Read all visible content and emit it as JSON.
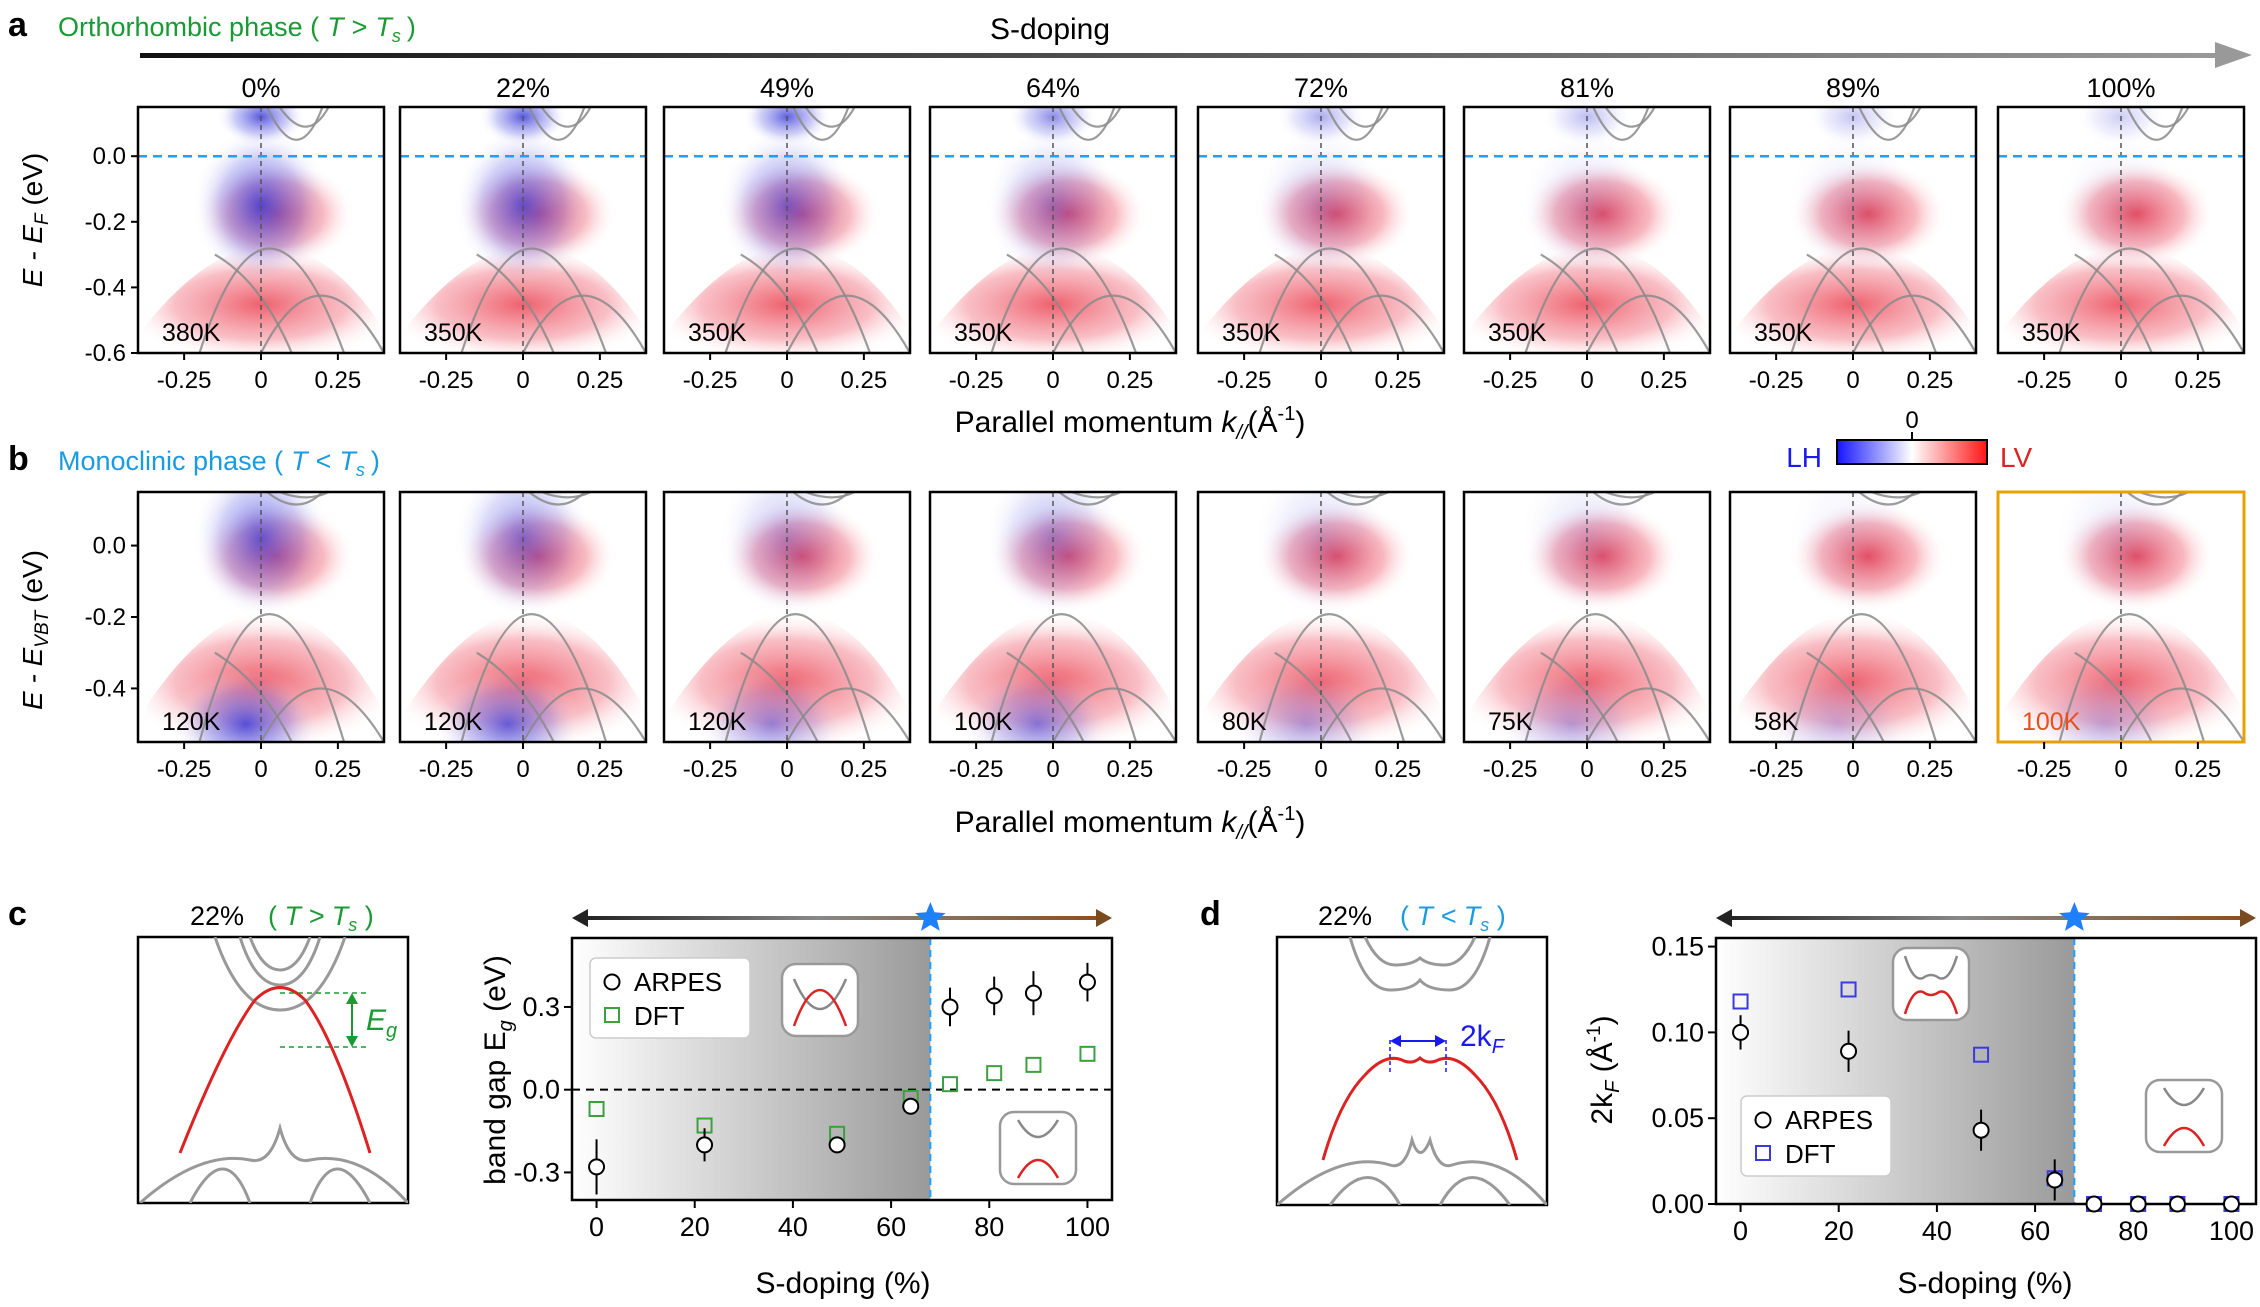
{
  "colors": {
    "green": "#1a9a33",
    "cyan": "#1a9be0",
    "red": "#dd2222",
    "blue": "#1a1aee",
    "orange": "#e8a000",
    "dashblue": "#1ea0ff",
    "star": "#1e7fff",
    "brown": "#7a4a20"
  },
  "panel_a": {
    "label": "a",
    "phase_prefix": "Orthorhombic phase (",
    "phase_T": "T",
    "phase_rel": ">",
    "phase_Ts": "T",
    "phase_sub": "s",
    "phase_suffix": ")",
    "arrow_label": "S-doping",
    "ylabel_main": "E - E",
    "ylabel_sub": "F",
    "ylabel_unit": " (eV)"
  },
  "panel_b": {
    "label": "b",
    "phase_prefix": "Monoclinic phase (",
    "phase_T": "T",
    "phase_rel": "<",
    "phase_Ts": "T",
    "phase_sub": "s",
    "phase_suffix": ")",
    "ylabel_main": "E - E",
    "ylabel_sub": "VBT",
    "ylabel_unit": " (eV)",
    "colorbar": {
      "left": "LH",
      "right": "LV",
      "zero": "0"
    }
  },
  "xaxis_label": {
    "main": "Parallel momentum ",
    "k": "k",
    "sub": "//",
    "unit_open": "(Å",
    "unit_exp": "-1",
    "unit_close": ")"
  },
  "chart_data": [
    {
      "id": "a",
      "type": "heatmap",
      "title": "ARPES spectra, orthorhombic phase (T > Ts)",
      "doping_labels": [
        "0%",
        "22%",
        "49%",
        "64%",
        "72%",
        "81%",
        "89%",
        "100%"
      ],
      "temperatures": [
        "380K",
        "350K",
        "350K",
        "350K",
        "350K",
        "350K",
        "350K",
        "350K"
      ],
      "blue_weight": [
        1.0,
        0.9,
        0.75,
        0.5,
        0.3,
        0.2,
        0.15,
        0.1
      ],
      "xticks": [
        "-0.25",
        "0",
        "0.25"
      ],
      "xlim": [
        -0.4,
        0.4
      ],
      "yticks": [
        "0.0",
        "-0.2",
        "-0.4",
        "-0.6"
      ],
      "ylim": [
        -0.6,
        0.15
      ],
      "fermi_line": 0.0
    },
    {
      "id": "b",
      "type": "heatmap",
      "title": "ARPES spectra, monoclinic phase (T < Ts)",
      "doping_labels": [
        "0%",
        "22%",
        "49%",
        "64%",
        "72%",
        "81%",
        "89%",
        "100%"
      ],
      "temperatures": [
        "120K",
        "120K",
        "120K",
        "100K",
        "80K",
        "75K",
        "58K",
        "100K"
      ],
      "blue_weight": [
        0.9,
        0.7,
        0.4,
        0.5,
        0.25,
        0.2,
        0.1,
        0.15
      ],
      "highlight_panel": 7,
      "xticks": [
        "-0.25",
        "0",
        "0.25"
      ],
      "xlim": [
        -0.4,
        0.4
      ],
      "yticks": [
        "0.0",
        "-0.2",
        "-0.4"
      ],
      "ylim": [
        -0.55,
        0.15
      ]
    },
    {
      "id": "c",
      "type": "scatter",
      "panel_label": "c",
      "inset_title_pct": "22%",
      "inset_title_rel": "T > T",
      "inset_title_sub": "s",
      "eg_label": "E",
      "eg_sub": "g",
      "xlabel": "S-doping (%)",
      "ylabel_main": "band gap E",
      "ylabel_sub": "g",
      "ylabel_unit": " (eV)",
      "xlim": [
        -5,
        105
      ],
      "ylim": [
        -0.4,
        0.55
      ],
      "xticks": [
        "0",
        "20",
        "40",
        "60",
        "80",
        "100"
      ],
      "yticks": [
        "-0.3",
        "0.0",
        "0.3"
      ],
      "transition_x": 68,
      "legend": [
        "ARPES",
        "DFT"
      ],
      "series": [
        {
          "name": "ARPES",
          "x": [
            0,
            22,
            49,
            64,
            72,
            81,
            89,
            100
          ],
          "y": [
            -0.28,
            -0.2,
            -0.2,
            -0.06,
            0.3,
            0.34,
            0.35,
            0.39
          ],
          "err": [
            0.1,
            0.06,
            0.0,
            0.03,
            0.07,
            0.07,
            0.08,
            0.07
          ]
        },
        {
          "name": "DFT",
          "x": [
            0,
            22,
            49,
            64,
            72,
            81,
            89,
            100
          ],
          "y": [
            -0.07,
            -0.13,
            -0.16,
            -0.03,
            0.02,
            0.06,
            0.09,
            0.13
          ]
        }
      ]
    },
    {
      "id": "d",
      "type": "scatter",
      "panel_label": "d",
      "inset_title_pct": "22%",
      "inset_title_rel": "T < T",
      "inset_title_sub": "s",
      "kf_label": "2k",
      "kf_sub": "F",
      "xlabel": "S-doping (%)",
      "ylabel_main": "2k",
      "ylabel_sub": "F",
      "ylabel_unit_open": " (Å",
      "ylabel_exp": "-1",
      "ylabel_close": ")",
      "xlim": [
        -5,
        105
      ],
      "ylim": [
        0,
        0.155
      ],
      "xticks": [
        "0",
        "20",
        "40",
        "60",
        "80",
        "100"
      ],
      "yticks": [
        "0.00",
        "0.05",
        "0.10",
        "0.15"
      ],
      "transition_x": 68,
      "legend": [
        "ARPES",
        "DFT"
      ],
      "series": [
        {
          "name": "ARPES",
          "x": [
            0,
            22,
            49,
            64,
            72,
            81,
            89,
            100
          ],
          "y": [
            0.1,
            0.089,
            0.043,
            0.014,
            0.0,
            0.0,
            0.0,
            0.0
          ],
          "err": [
            0.01,
            0.012,
            0.012,
            0.012,
            0.0,
            0.0,
            0.0,
            0.0
          ]
        },
        {
          "name": "DFT",
          "x": [
            0,
            22,
            49,
            64,
            72,
            81,
            89,
            100
          ],
          "y": [
            0.118,
            0.125,
            0.087,
            0.015,
            0.0,
            0.0,
            0.0,
            0.0
          ]
        }
      ]
    }
  ]
}
